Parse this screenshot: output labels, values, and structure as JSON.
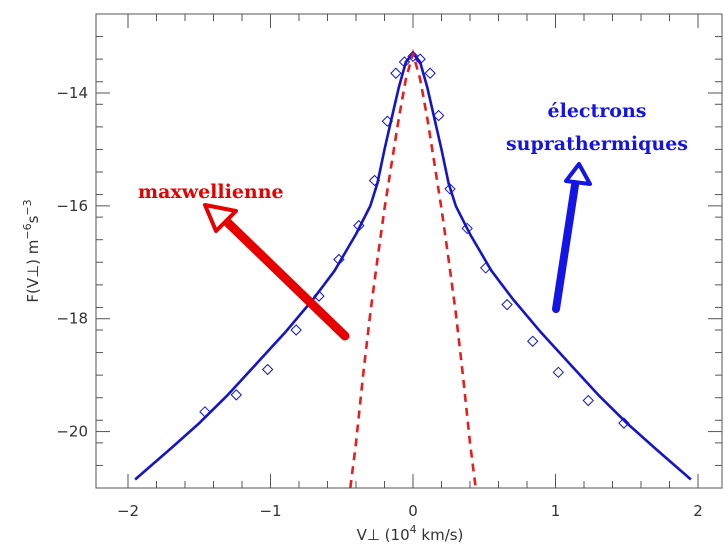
{
  "chart_data": {
    "type": "line",
    "title": "",
    "xlabel": "V⊥ (10",
    "xlabel_sup": "4",
    "xlabel_tail": " km/s)",
    "ylabel": "F(V⊥) m",
    "ylabel_sup1": "−6",
    "ylabel_mid": "s",
    "ylabel_sup2": "−3",
    "xlim": [
      -2.0,
      2.0
    ],
    "ylim": [
      -21.0,
      -12.6
    ],
    "x_ticks": [
      -2,
      -1,
      0,
      1,
      2
    ],
    "x_tick_labels": [
      "−2",
      "−1",
      "0",
      "1",
      "2"
    ],
    "y_ticks": [
      -20,
      -18,
      -16,
      -14
    ],
    "y_tick_labels": [
      "−20",
      "−18",
      "−16",
      "−14"
    ],
    "grid": false,
    "series": [
      {
        "style": "solid",
        "color": "#1414c8",
        "x": [
          -1.95,
          -1.7,
          -1.5,
          -1.3,
          -1.1,
          -0.9,
          -0.7,
          -0.55,
          -0.4,
          -0.3,
          -0.25,
          -0.2,
          -0.15,
          -0.1,
          -0.05,
          0.0,
          0.05,
          0.1,
          0.15,
          0.2,
          0.25,
          0.3,
          0.4,
          0.55,
          0.7,
          0.9,
          1.1,
          1.3,
          1.5,
          1.7,
          1.95
        ],
        "y": [
          -20.85,
          -20.3,
          -19.85,
          -19.35,
          -18.8,
          -18.25,
          -17.65,
          -17.15,
          -16.5,
          -16.0,
          -15.6,
          -15.0,
          -14.45,
          -13.9,
          -13.45,
          -13.3,
          -13.45,
          -13.9,
          -14.45,
          -15.0,
          -15.6,
          -16.0,
          -16.5,
          -17.15,
          -17.65,
          -18.25,
          -18.8,
          -19.35,
          -19.85,
          -20.3,
          -20.85
        ]
      },
      {
        "style": "dashed",
        "color": "#e61e1e",
        "x": [
          -0.44,
          -0.4,
          -0.35,
          -0.3,
          -0.25,
          -0.2,
          -0.15,
          -0.1,
          -0.05,
          0.0,
          0.05,
          0.1,
          0.15,
          0.2,
          0.25,
          0.3,
          0.35,
          0.4,
          0.44
        ],
        "y": [
          -21.0,
          -20.2,
          -19.0,
          -17.9,
          -16.95,
          -16.05,
          -15.25,
          -14.45,
          -13.75,
          -13.3,
          -13.75,
          -14.45,
          -15.25,
          -16.05,
          -16.95,
          -17.9,
          -19.0,
          -20.2,
          -21.0
        ]
      },
      {
        "style": "markers",
        "marker": "diamond",
        "color": "#1414c8",
        "x": [
          -1.46,
          -1.24,
          -1.02,
          -0.82,
          -0.66,
          -0.52,
          -0.38,
          -0.27,
          -0.18,
          -0.12,
          -0.06,
          0.0,
          0.05,
          0.12,
          0.18,
          0.26,
          0.38,
          0.51,
          0.66,
          0.84,
          1.02,
          1.23,
          1.48
        ],
        "y": [
          -19.65,
          -19.35,
          -18.9,
          -18.2,
          -17.6,
          -16.95,
          -16.35,
          -15.55,
          -14.5,
          -13.65,
          -13.45,
          -13.35,
          -13.4,
          -13.65,
          -14.4,
          -15.7,
          -16.4,
          -17.1,
          -17.75,
          -18.4,
          -18.95,
          -19.45,
          -19.85
        ]
      }
    ],
    "annotations": [
      {
        "text": "maxwellienne",
        "color": "#e60000"
      },
      {
        "text": "électrons",
        "color": "#1414e6"
      },
      {
        "text": "suprathermiques",
        "color": "#1414e6"
      }
    ]
  }
}
